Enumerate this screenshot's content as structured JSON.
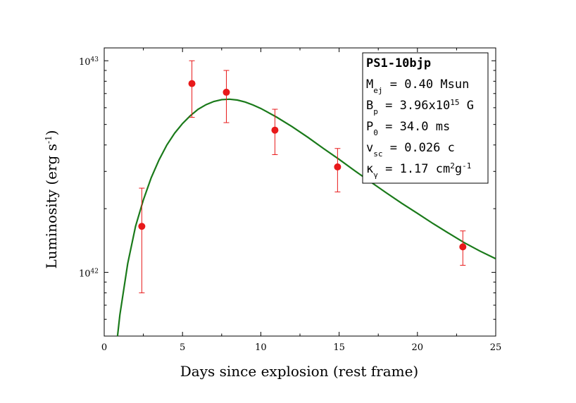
{
  "chart_data": {
    "type": "scatter",
    "xlabel": "Days since explosion (rest frame)",
    "ylabel": "Luminosity (erg s",
    "ylabel_sup": "-1",
    "ylabel_end": ")",
    "xlim": [
      0,
      25
    ],
    "ylim": [
      5e+41,
      1.15e+43
    ],
    "yscale": "log",
    "x_ticks": [
      0,
      5,
      10,
      15,
      20,
      25
    ],
    "x_tick_labels": [
      "0",
      "5",
      "10",
      "15",
      "20",
      "25"
    ],
    "y_major_ticks": [
      {
        "value": 1e+42,
        "base": "10",
        "exp": "42"
      },
      {
        "value": 1e+43,
        "base": "10",
        "exp": "43"
      }
    ],
    "grid": false,
    "legend_position": "top-right",
    "series": [
      {
        "kind": "observed",
        "color": "#e8191a",
        "points": [
          {
            "x": 2.4,
            "y": 1.65e+42,
            "yerr_low": 8e+41,
            "yerr_high": 2.5e+42
          },
          {
            "x": 5.6,
            "y": 7.8e+42,
            "yerr_low": 5.4e+42,
            "yerr_high": 1e+43
          },
          {
            "x": 7.8,
            "y": 7.1e+42,
            "yerr_low": 5.1e+42,
            "yerr_high": 9e+42
          },
          {
            "x": 10.9,
            "y": 4.7e+42,
            "yerr_low": 3.6e+42,
            "yerr_high": 5.9e+42
          },
          {
            "x": 14.9,
            "y": 3.15e+42,
            "yerr_low": 2.4e+42,
            "yerr_high": 3.85e+42
          },
          {
            "x": 22.9,
            "y": 1.32e+42,
            "yerr_low": 1.08e+42,
            "yerr_high": 1.57e+42
          }
        ]
      },
      {
        "kind": "model",
        "type": "line",
        "color": "#1a7a1a",
        "points": [
          {
            "x": 0.85,
            "y": 5e+41
          },
          {
            "x": 1.0,
            "y": 6.3e+41
          },
          {
            "x": 1.5,
            "y": 1.1e+42
          },
          {
            "x": 2.0,
            "y": 1.65e+42
          },
          {
            "x": 2.5,
            "y": 2.2e+42
          },
          {
            "x": 3.0,
            "y": 2.8e+42
          },
          {
            "x": 3.5,
            "y": 3.4e+42
          },
          {
            "x": 4.0,
            "y": 4e+42
          },
          {
            "x": 4.5,
            "y": 4.55e+42
          },
          {
            "x": 5.0,
            "y": 5.05e+42
          },
          {
            "x": 5.5,
            "y": 5.5e+42
          },
          {
            "x": 6.0,
            "y": 5.9e+42
          },
          {
            "x": 6.5,
            "y": 6.2e+42
          },
          {
            "x": 7.0,
            "y": 6.42e+42
          },
          {
            "x": 7.5,
            "y": 6.55e+42
          },
          {
            "x": 8.0,
            "y": 6.58e+42
          },
          {
            "x": 8.5,
            "y": 6.52e+42
          },
          {
            "x": 9.0,
            "y": 6.38e+42
          },
          {
            "x": 9.5,
            "y": 6.18e+42
          },
          {
            "x": 10.0,
            "y": 5.95e+42
          },
          {
            "x": 11.0,
            "y": 5.42e+42
          },
          {
            "x": 12.0,
            "y": 4.88e+42
          },
          {
            "x": 13.0,
            "y": 4.35e+42
          },
          {
            "x": 14.0,
            "y": 3.85e+42
          },
          {
            "x": 15.0,
            "y": 3.42e+42
          },
          {
            "x": 16.0,
            "y": 3.02e+42
          },
          {
            "x": 17.0,
            "y": 2.68e+42
          },
          {
            "x": 18.0,
            "y": 2.38e+42
          },
          {
            "x": 19.0,
            "y": 2.12e+42
          },
          {
            "x": 20.0,
            "y": 1.9e+42
          },
          {
            "x": 21.0,
            "y": 1.7e+42
          },
          {
            "x": 22.0,
            "y": 1.53e+42
          },
          {
            "x": 23.0,
            "y": 1.38e+42
          },
          {
            "x": 24.0,
            "y": 1.26e+42
          },
          {
            "x": 25.0,
            "y": 1.16e+42
          }
        ]
      }
    ],
    "legend": {
      "title": "PS1-10bjp",
      "lines": [
        {
          "parts": [
            {
              "t": "M"
            },
            {
              "t": "ej",
              "sub": true
            },
            {
              "t": " = 0.40 Msun"
            }
          ]
        },
        {
          "parts": [
            {
              "t": "B"
            },
            {
              "t": "p",
              "sub": true
            },
            {
              "t": " = 3.96x10"
            },
            {
              "t": "15",
              "sup": true
            },
            {
              "t": " G"
            }
          ]
        },
        {
          "parts": [
            {
              "t": "P"
            },
            {
              "t": "0",
              "sub": true
            },
            {
              "t": " = 34.0 ms"
            }
          ]
        },
        {
          "parts": [
            {
              "t": "v"
            },
            {
              "t": "sc",
              "sub": true
            },
            {
              "t": " = 0.026 c"
            }
          ]
        },
        {
          "parts": [
            {
              "t": "κ"
            },
            {
              "t": "γ",
              "sub": true
            },
            {
              "t": " = 1.17 cm"
            },
            {
              "t": "2",
              "sup": true
            },
            {
              "t": "g"
            },
            {
              "t": "-1",
              "sup": true
            }
          ]
        }
      ]
    }
  }
}
